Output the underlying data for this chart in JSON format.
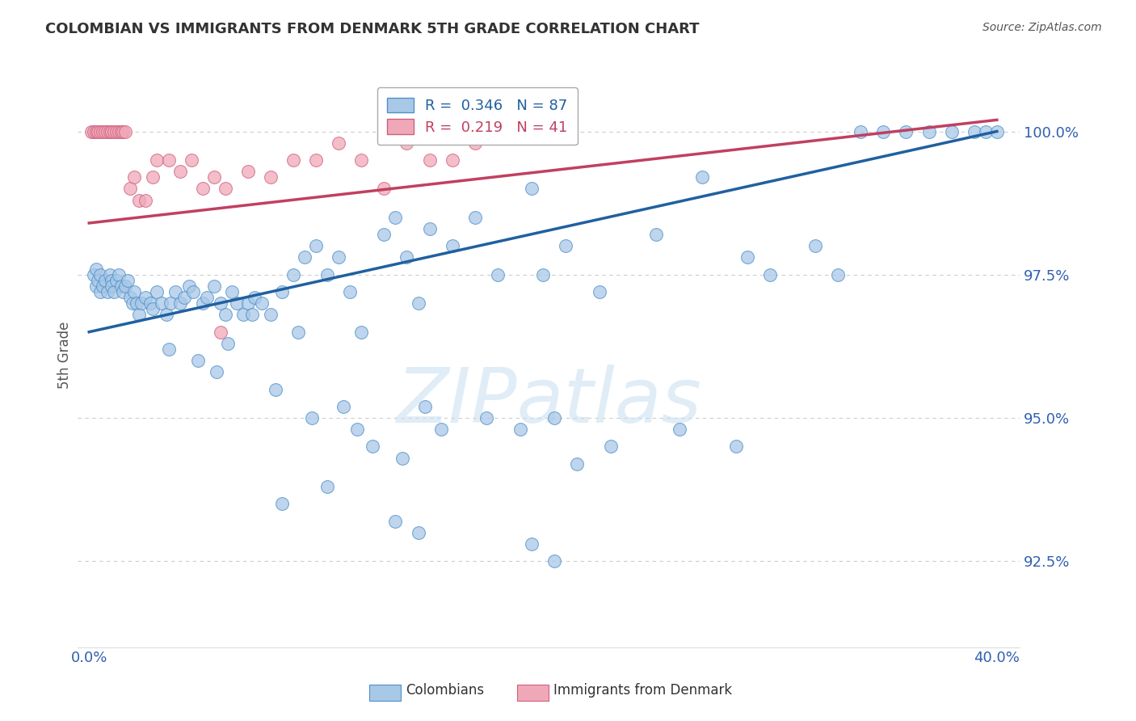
{
  "title": "COLOMBIAN VS IMMIGRANTS FROM DENMARK 5TH GRADE CORRELATION CHART",
  "source": "Source: ZipAtlas.com",
  "ylabel": "5th Grade",
  "y_ticks": [
    92.5,
    95.0,
    97.5,
    100.0
  ],
  "ylim": [
    91.0,
    101.2
  ],
  "xlim": [
    -0.5,
    41.0
  ],
  "x_ticks": [
    0.0,
    5.0,
    10.0,
    15.0,
    20.0,
    25.0,
    30.0,
    35.0,
    40.0
  ],
  "blue_R": 0.346,
  "blue_N": 87,
  "pink_R": 0.219,
  "pink_N": 41,
  "blue_color": "#a8c8e8",
  "pink_color": "#f0a8b8",
  "blue_edge_color": "#5090c8",
  "pink_edge_color": "#d06080",
  "blue_line_color": "#2060a0",
  "pink_line_color": "#c04060",
  "blue_scatter_x": [
    0.2,
    0.3,
    0.3,
    0.4,
    0.5,
    0.5,
    0.6,
    0.7,
    0.8,
    0.9,
    1.0,
    1.0,
    1.1,
    1.2,
    1.3,
    1.4,
    1.5,
    1.6,
    1.7,
    1.8,
    1.9,
    2.0,
    2.1,
    2.2,
    2.3,
    2.5,
    2.7,
    2.8,
    3.0,
    3.2,
    3.4,
    3.6,
    3.8,
    4.0,
    4.2,
    4.4,
    4.6,
    5.0,
    5.2,
    5.5,
    5.8,
    6.0,
    6.3,
    6.5,
    6.8,
    7.0,
    7.3,
    7.6,
    8.0,
    8.5,
    9.0,
    9.5,
    10.0,
    10.5,
    11.0,
    11.5,
    12.0,
    13.0,
    13.5,
    14.0,
    14.5,
    15.0,
    16.0,
    17.0,
    18.0,
    19.5,
    20.0,
    21.0,
    22.5,
    25.0,
    27.0,
    29.0,
    30.0,
    32.0,
    34.0,
    35.0,
    36.0,
    37.0,
    38.0,
    39.0,
    39.5,
    40.0,
    20.5,
    14.8,
    11.8,
    9.2,
    7.2
  ],
  "blue_scatter_y": [
    97.5,
    97.6,
    97.3,
    97.4,
    97.5,
    97.2,
    97.3,
    97.4,
    97.2,
    97.5,
    97.4,
    97.3,
    97.2,
    97.4,
    97.5,
    97.3,
    97.2,
    97.3,
    97.4,
    97.1,
    97.0,
    97.2,
    97.0,
    96.8,
    97.0,
    97.1,
    97.0,
    96.9,
    97.2,
    97.0,
    96.8,
    97.0,
    97.2,
    97.0,
    97.1,
    97.3,
    97.2,
    97.0,
    97.1,
    97.3,
    97.0,
    96.8,
    97.2,
    97.0,
    96.8,
    97.0,
    97.1,
    97.0,
    96.8,
    97.2,
    97.5,
    97.8,
    98.0,
    97.5,
    97.8,
    97.2,
    96.5,
    98.2,
    98.5,
    97.8,
    97.0,
    98.3,
    98.0,
    98.5,
    97.5,
    99.0,
    97.5,
    98.0,
    97.2,
    98.2,
    99.2,
    97.8,
    97.5,
    98.0,
    100.0,
    100.0,
    100.0,
    100.0,
    100.0,
    100.0,
    100.0,
    100.0,
    95.0,
    95.2,
    94.8,
    96.5,
    96.8
  ],
  "blue_scatter_x2": [
    3.5,
    4.8,
    5.6,
    6.1,
    8.2,
    9.8,
    11.2,
    12.5,
    13.8,
    15.5,
    17.5,
    19.0,
    21.5,
    23.0,
    26.0,
    28.5,
    33.0
  ],
  "blue_scatter_y2": [
    96.2,
    96.0,
    95.8,
    96.3,
    95.5,
    95.0,
    95.2,
    94.5,
    94.3,
    94.8,
    95.0,
    94.8,
    94.2,
    94.5,
    94.8,
    94.5,
    97.5
  ],
  "blue_scatter_x3": [
    8.5,
    10.5,
    13.5,
    14.5,
    19.5,
    20.5
  ],
  "blue_scatter_y3": [
    93.5,
    93.8,
    93.2,
    93.0,
    92.8,
    92.5
  ],
  "pink_scatter_x": [
    0.1,
    0.2,
    0.3,
    0.4,
    0.5,
    0.6,
    0.7,
    0.8,
    0.9,
    1.0,
    1.1,
    1.2,
    1.3,
    1.4,
    1.5,
    1.6,
    1.8,
    2.0,
    2.2,
    2.5,
    2.8,
    3.0,
    3.5,
    4.0,
    4.5,
    5.0,
    5.5,
    6.0,
    7.0,
    8.0,
    9.0,
    10.0,
    11.0,
    12.0,
    13.0,
    14.0,
    15.0,
    16.0,
    17.0,
    18.0,
    5.8
  ],
  "pink_scatter_y": [
    100.0,
    100.0,
    100.0,
    100.0,
    100.0,
    100.0,
    100.0,
    100.0,
    100.0,
    100.0,
    100.0,
    100.0,
    100.0,
    100.0,
    100.0,
    100.0,
    99.0,
    99.2,
    98.8,
    98.8,
    99.2,
    99.5,
    99.5,
    99.3,
    99.5,
    99.0,
    99.2,
    99.0,
    99.3,
    99.2,
    99.5,
    99.5,
    99.8,
    99.5,
    99.0,
    99.8,
    99.5,
    99.5,
    99.8,
    100.0,
    96.5
  ],
  "blue_trend_x": [
    0.0,
    40.0
  ],
  "blue_trend_y": [
    96.5,
    100.0
  ],
  "pink_trend_x": [
    0.0,
    40.0
  ],
  "pink_trend_y": [
    98.4,
    100.2
  ],
  "background_color": "#ffffff",
  "grid_color": "#cccccc",
  "tick_color": "#3060b0",
  "title_color": "#333333"
}
